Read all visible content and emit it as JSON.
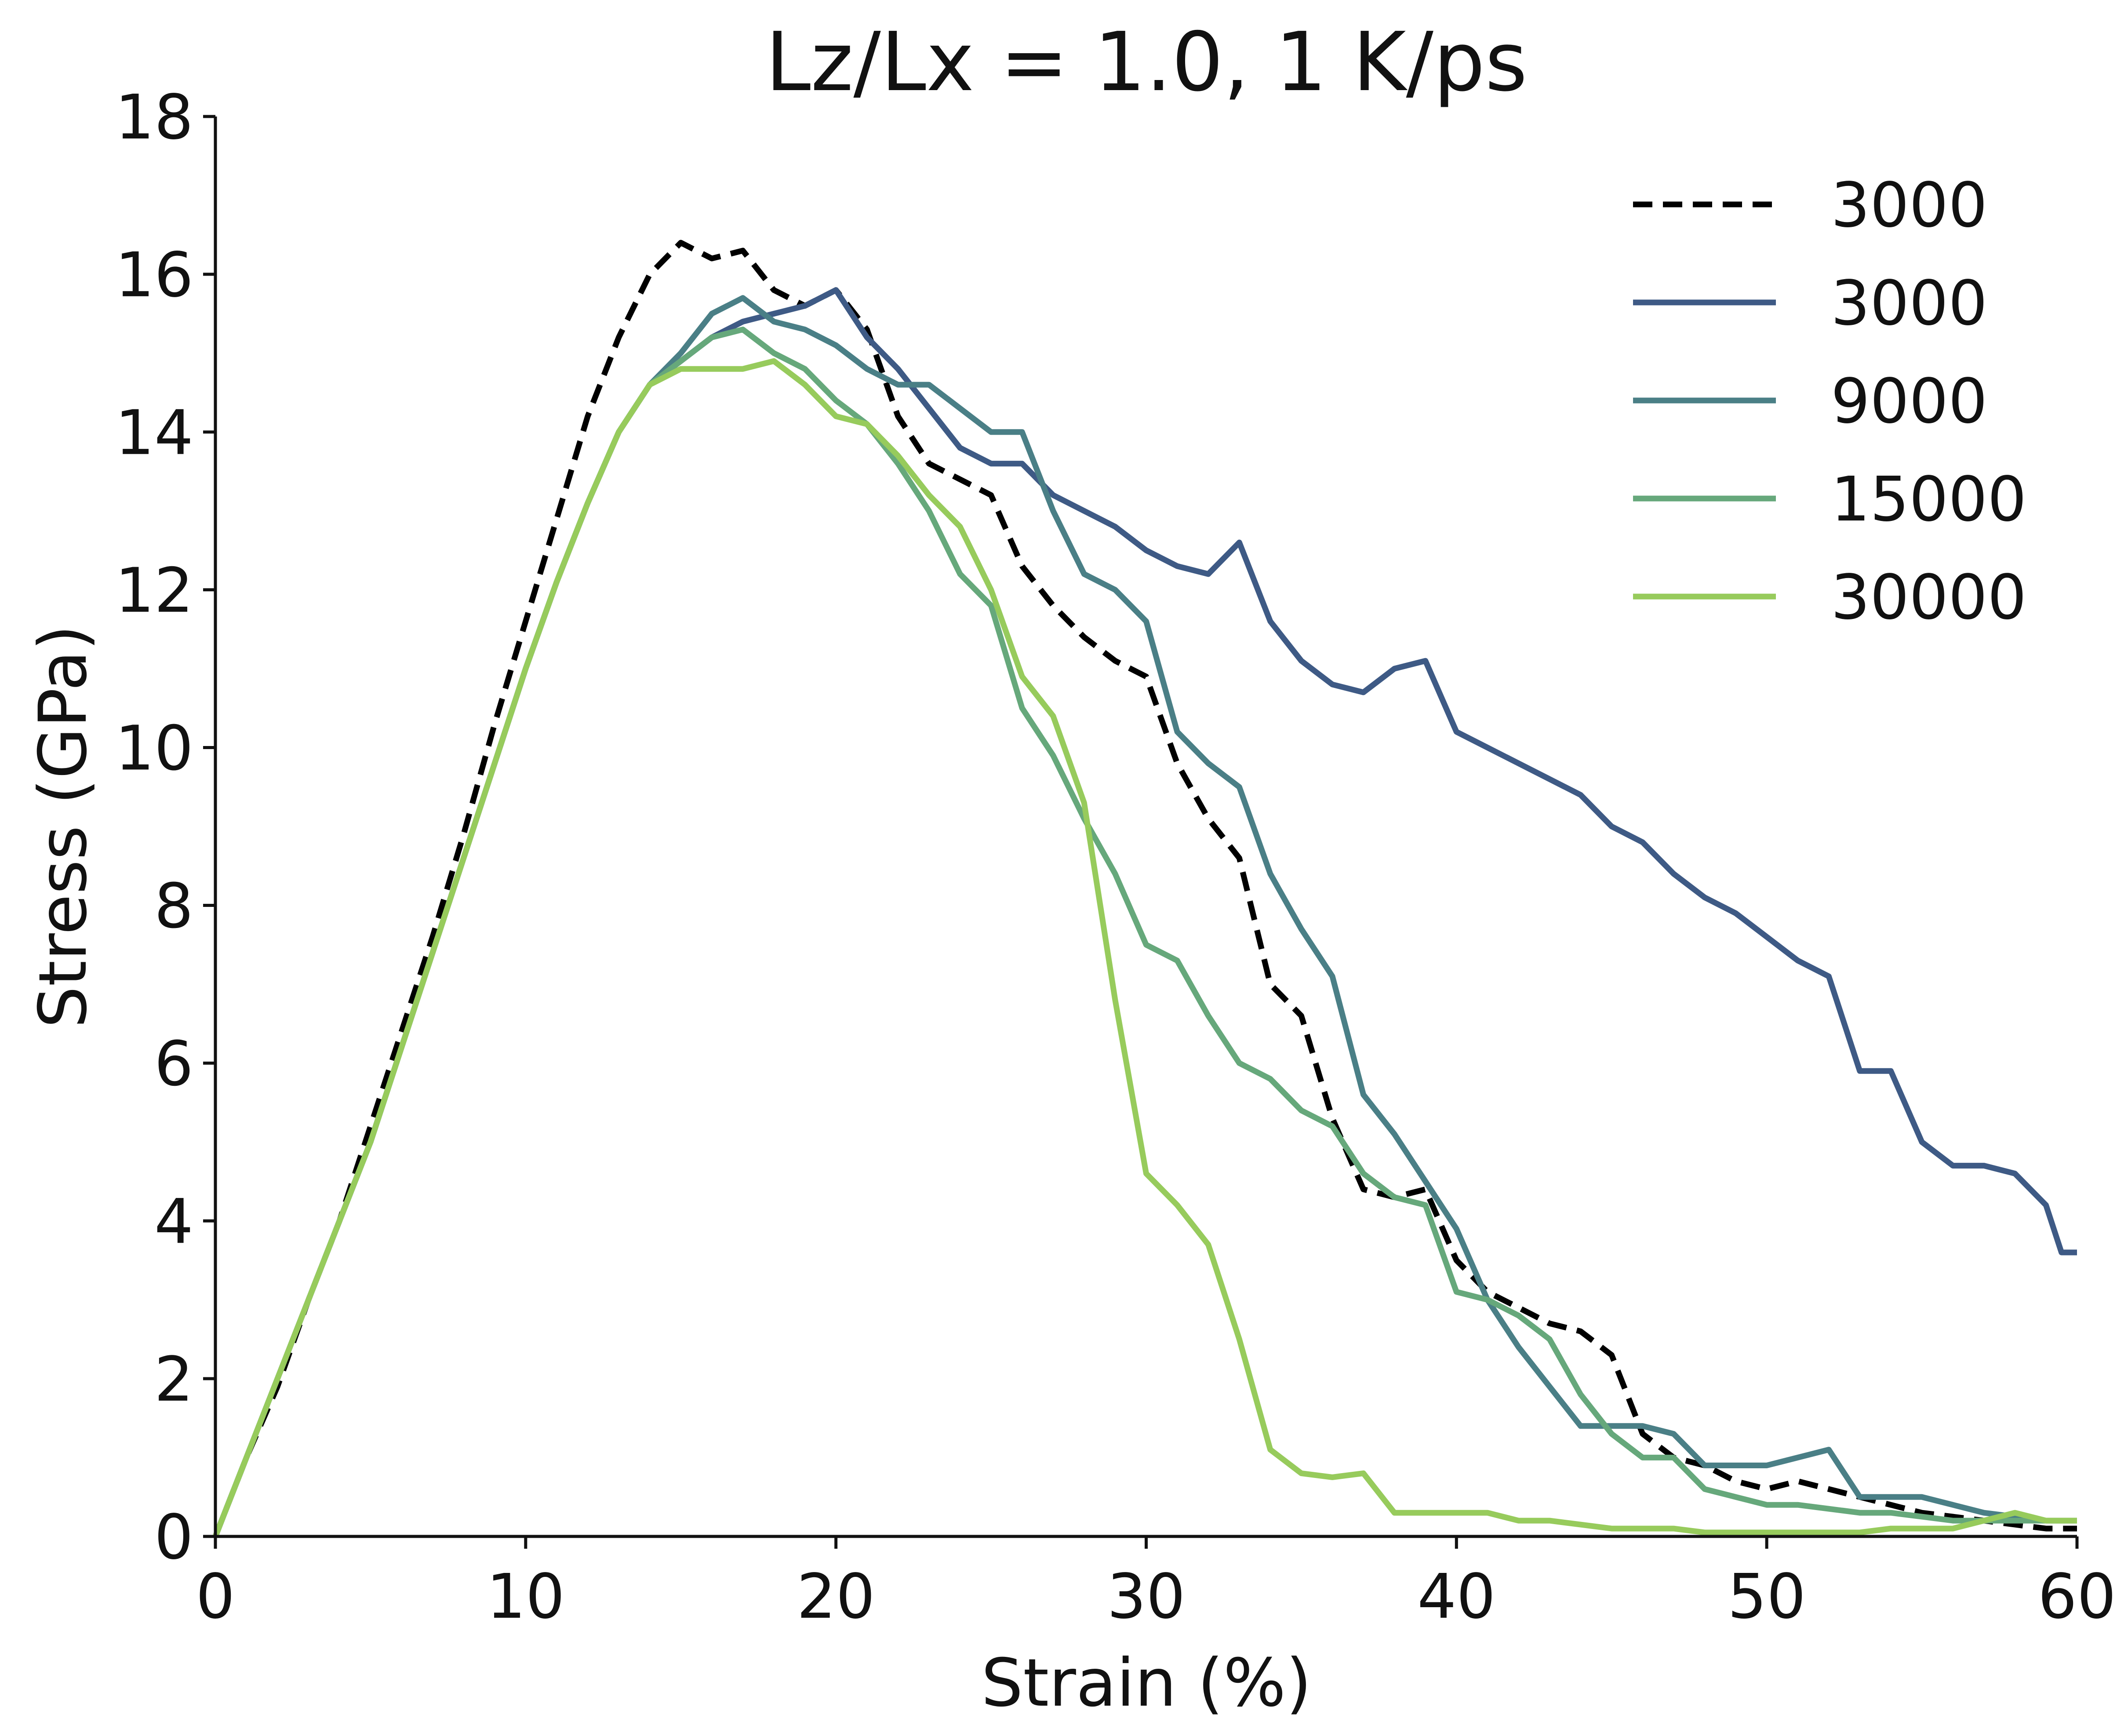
{
  "chart_data": {
    "type": "line",
    "title": "Lz/Lx = 1.0, 1 K/ps",
    "xlabel": "Strain (%)",
    "ylabel": "Stress (GPa)",
    "xlim": [
      0,
      60
    ],
    "ylim": [
      0,
      18
    ],
    "xticks": [
      0,
      10,
      20,
      30,
      40,
      50,
      60
    ],
    "yticks": [
      0,
      2,
      4,
      6,
      8,
      10,
      12,
      14,
      16,
      18
    ],
    "grid": false,
    "legend_position": "top-right",
    "series": [
      {
        "name": "3000",
        "color": "#000000",
        "dashed": true,
        "points": [
          [
            0,
            0
          ],
          [
            1,
            1.0
          ],
          [
            2,
            1.9
          ],
          [
            3,
            3.0
          ],
          [
            4,
            4.0
          ],
          [
            5,
            5.2
          ],
          [
            6,
            6.4
          ],
          [
            7,
            7.6
          ],
          [
            8,
            8.9
          ],
          [
            9,
            10.3
          ],
          [
            10,
            11.6
          ],
          [
            11,
            12.9
          ],
          [
            12,
            14.2
          ],
          [
            13,
            15.2
          ],
          [
            14,
            16.0
          ],
          [
            15,
            16.4
          ],
          [
            16,
            16.2
          ],
          [
            17,
            16.3
          ],
          [
            18,
            15.8
          ],
          [
            19,
            15.6
          ],
          [
            20,
            15.8
          ],
          [
            21,
            15.3
          ],
          [
            22,
            14.2
          ],
          [
            23,
            13.6
          ],
          [
            24,
            13.4
          ],
          [
            25,
            13.2
          ],
          [
            26,
            12.3
          ],
          [
            27,
            11.8
          ],
          [
            28,
            11.4
          ],
          [
            29,
            11.1
          ],
          [
            30,
            10.9
          ],
          [
            31,
            9.8
          ],
          [
            32,
            9.1
          ],
          [
            33,
            8.6
          ],
          [
            34,
            7.0
          ],
          [
            35,
            6.6
          ],
          [
            36,
            5.3
          ],
          [
            37,
            4.4
          ],
          [
            38,
            4.3
          ],
          [
            39,
            4.4
          ],
          [
            40,
            3.5
          ],
          [
            41,
            3.1
          ],
          [
            42,
            2.9
          ],
          [
            43,
            2.7
          ],
          [
            44,
            2.6
          ],
          [
            45,
            2.3
          ],
          [
            46,
            1.3
          ],
          [
            47,
            1.0
          ],
          [
            48,
            0.9
          ],
          [
            49,
            0.7
          ],
          [
            50,
            0.6
          ],
          [
            51,
            0.7
          ],
          [
            52,
            0.6
          ],
          [
            53,
            0.5
          ],
          [
            54,
            0.4
          ],
          [
            55,
            0.3
          ],
          [
            56,
            0.25
          ],
          [
            57,
            0.2
          ],
          [
            58,
            0.15
          ],
          [
            59,
            0.1
          ],
          [
            60,
            0.1
          ]
        ]
      },
      {
        "name": "3000",
        "color": "#3e5a85",
        "dashed": false,
        "points": [
          [
            0,
            0
          ],
          [
            1,
            1.0
          ],
          [
            2,
            2.0
          ],
          [
            3,
            3.0
          ],
          [
            4,
            4.0
          ],
          [
            5,
            5.0
          ],
          [
            6,
            6.2
          ],
          [
            7,
            7.4
          ],
          [
            8,
            8.6
          ],
          [
            9,
            9.8
          ],
          [
            10,
            11.0
          ],
          [
            11,
            12.1
          ],
          [
            12,
            13.1
          ],
          [
            13,
            14.0
          ],
          [
            14,
            14.6
          ],
          [
            15,
            14.9
          ],
          [
            16,
            15.2
          ],
          [
            17,
            15.4
          ],
          [
            18,
            15.5
          ],
          [
            19,
            15.6
          ],
          [
            20,
            15.8
          ],
          [
            21,
            15.2
          ],
          [
            22,
            14.8
          ],
          [
            23,
            14.3
          ],
          [
            24,
            13.8
          ],
          [
            25,
            13.6
          ],
          [
            26,
            13.6
          ],
          [
            27,
            13.2
          ],
          [
            28,
            13.0
          ],
          [
            29,
            12.8
          ],
          [
            30,
            12.5
          ],
          [
            31,
            12.3
          ],
          [
            32,
            12.2
          ],
          [
            33,
            12.6
          ],
          [
            34,
            11.6
          ],
          [
            35,
            11.1
          ],
          [
            36,
            10.8
          ],
          [
            37,
            10.7
          ],
          [
            38,
            11.0
          ],
          [
            39,
            11.1
          ],
          [
            40,
            10.2
          ],
          [
            41,
            10.0
          ],
          [
            42,
            9.8
          ],
          [
            43,
            9.6
          ],
          [
            44,
            9.4
          ],
          [
            45,
            9.0
          ],
          [
            46,
            8.8
          ],
          [
            47,
            8.4
          ],
          [
            48,
            8.1
          ],
          [
            49,
            7.9
          ],
          [
            50,
            7.6
          ],
          [
            51,
            7.3
          ],
          [
            52,
            7.1
          ],
          [
            53,
            5.9
          ],
          [
            54,
            5.9
          ],
          [
            55,
            5.0
          ],
          [
            56,
            4.7
          ],
          [
            57,
            4.7
          ],
          [
            58,
            4.6
          ],
          [
            59,
            4.2
          ],
          [
            59.5,
            3.6
          ],
          [
            60,
            3.6
          ]
        ]
      },
      {
        "name": "9000",
        "color": "#4a7f86",
        "dashed": false,
        "points": [
          [
            0,
            0
          ],
          [
            1,
            1.0
          ],
          [
            2,
            2.0
          ],
          [
            3,
            3.0
          ],
          [
            4,
            4.0
          ],
          [
            5,
            5.0
          ],
          [
            6,
            6.2
          ],
          [
            7,
            7.4
          ],
          [
            8,
            8.6
          ],
          [
            9,
            9.8
          ],
          [
            10,
            11.0
          ],
          [
            11,
            12.1
          ],
          [
            12,
            13.1
          ],
          [
            13,
            14.0
          ],
          [
            14,
            14.6
          ],
          [
            15,
            15.0
          ],
          [
            16,
            15.5
          ],
          [
            17,
            15.7
          ],
          [
            18,
            15.4
          ],
          [
            19,
            15.3
          ],
          [
            20,
            15.1
          ],
          [
            21,
            14.8
          ],
          [
            22,
            14.6
          ],
          [
            23,
            14.6
          ],
          [
            24,
            14.3
          ],
          [
            25,
            14.0
          ],
          [
            26,
            14.0
          ],
          [
            27,
            13.0
          ],
          [
            28,
            12.2
          ],
          [
            29,
            12.0
          ],
          [
            30,
            11.6
          ],
          [
            31,
            10.2
          ],
          [
            32,
            9.8
          ],
          [
            33,
            9.5
          ],
          [
            34,
            8.4
          ],
          [
            35,
            7.7
          ],
          [
            36,
            7.1
          ],
          [
            37,
            5.6
          ],
          [
            38,
            5.1
          ],
          [
            39,
            4.5
          ],
          [
            40,
            3.9
          ],
          [
            41,
            3.0
          ],
          [
            42,
            2.4
          ],
          [
            43,
            1.9
          ],
          [
            44,
            1.4
          ],
          [
            45,
            1.4
          ],
          [
            46,
            1.4
          ],
          [
            47,
            1.3
          ],
          [
            48,
            0.9
          ],
          [
            49,
            0.9
          ],
          [
            50,
            0.9
          ],
          [
            51,
            1.0
          ],
          [
            52,
            1.1
          ],
          [
            53,
            0.5
          ],
          [
            54,
            0.5
          ],
          [
            55,
            0.5
          ],
          [
            56,
            0.4
          ],
          [
            57,
            0.3
          ],
          [
            58,
            0.25
          ],
          [
            59,
            0.2
          ],
          [
            60,
            0.2
          ]
        ]
      },
      {
        "name": "15000",
        "color": "#66a87b",
        "dashed": false,
        "points": [
          [
            0,
            0
          ],
          [
            1,
            1.0
          ],
          [
            2,
            2.0
          ],
          [
            3,
            3.0
          ],
          [
            4,
            4.0
          ],
          [
            5,
            5.0
          ],
          [
            6,
            6.2
          ],
          [
            7,
            7.4
          ],
          [
            8,
            8.6
          ],
          [
            9,
            9.8
          ],
          [
            10,
            11.0
          ],
          [
            11,
            12.1
          ],
          [
            12,
            13.1
          ],
          [
            13,
            14.0
          ],
          [
            14,
            14.6
          ],
          [
            15,
            14.9
          ],
          [
            16,
            15.2
          ],
          [
            17,
            15.3
          ],
          [
            18,
            15.0
          ],
          [
            19,
            14.8
          ],
          [
            20,
            14.4
          ],
          [
            21,
            14.1
          ],
          [
            22,
            13.6
          ],
          [
            23,
            13.0
          ],
          [
            24,
            12.2
          ],
          [
            25,
            11.8
          ],
          [
            26,
            10.5
          ],
          [
            27,
            9.9
          ],
          [
            28,
            9.1
          ],
          [
            29,
            8.4
          ],
          [
            30,
            7.5
          ],
          [
            31,
            7.3
          ],
          [
            32,
            6.6
          ],
          [
            33,
            6.0
          ],
          [
            34,
            5.8
          ],
          [
            35,
            5.4
          ],
          [
            36,
            5.2
          ],
          [
            37,
            4.6
          ],
          [
            38,
            4.3
          ],
          [
            39,
            4.2
          ],
          [
            40,
            3.1
          ],
          [
            41,
            3.0
          ],
          [
            42,
            2.8
          ],
          [
            43,
            2.5
          ],
          [
            44,
            1.8
          ],
          [
            45,
            1.3
          ],
          [
            46,
            1.0
          ],
          [
            47,
            1.0
          ],
          [
            48,
            0.6
          ],
          [
            49,
            0.5
          ],
          [
            50,
            0.4
          ],
          [
            51,
            0.4
          ],
          [
            52,
            0.35
          ],
          [
            53,
            0.3
          ],
          [
            54,
            0.3
          ],
          [
            55,
            0.25
          ],
          [
            56,
            0.2
          ],
          [
            57,
            0.2
          ],
          [
            58,
            0.2
          ],
          [
            59,
            0.2
          ],
          [
            60,
            0.2
          ]
        ]
      },
      {
        "name": "30000",
        "color": "#97cb5c",
        "dashed": false,
        "points": [
          [
            0,
            0
          ],
          [
            1,
            1.0
          ],
          [
            2,
            2.0
          ],
          [
            3,
            3.0
          ],
          [
            4,
            4.0
          ],
          [
            5,
            5.0
          ],
          [
            6,
            6.2
          ],
          [
            7,
            7.4
          ],
          [
            8,
            8.6
          ],
          [
            9,
            9.8
          ],
          [
            10,
            11.0
          ],
          [
            11,
            12.1
          ],
          [
            12,
            13.1
          ],
          [
            13,
            14.0
          ],
          [
            14,
            14.6
          ],
          [
            15,
            14.8
          ],
          [
            16,
            14.8
          ],
          [
            17,
            14.8
          ],
          [
            18,
            14.9
          ],
          [
            19,
            14.6
          ],
          [
            20,
            14.2
          ],
          [
            21,
            14.1
          ],
          [
            22,
            13.7
          ],
          [
            23,
            13.2
          ],
          [
            24,
            12.8
          ],
          [
            25,
            12.0
          ],
          [
            26,
            10.9
          ],
          [
            27,
            10.4
          ],
          [
            28,
            9.3
          ],
          [
            29,
            6.8
          ],
          [
            30,
            4.6
          ],
          [
            31,
            4.2
          ],
          [
            32,
            3.7
          ],
          [
            33,
            2.5
          ],
          [
            34,
            1.1
          ],
          [
            35,
            0.8
          ],
          [
            36,
            0.75
          ],
          [
            37,
            0.8
          ],
          [
            38,
            0.3
          ],
          [
            39,
            0.3
          ],
          [
            40,
            0.3
          ],
          [
            41,
            0.3
          ],
          [
            42,
            0.2
          ],
          [
            43,
            0.2
          ],
          [
            44,
            0.15
          ],
          [
            45,
            0.1
          ],
          [
            46,
            0.1
          ],
          [
            47,
            0.1
          ],
          [
            48,
            0.05
          ],
          [
            49,
            0.05
          ],
          [
            50,
            0.05
          ],
          [
            51,
            0.05
          ],
          [
            52,
            0.05
          ],
          [
            53,
            0.05
          ],
          [
            54,
            0.1
          ],
          [
            55,
            0.1
          ],
          [
            56,
            0.1
          ],
          [
            57,
            0.2
          ],
          [
            58,
            0.3
          ],
          [
            59,
            0.2
          ],
          [
            60,
            0.2
          ]
        ]
      }
    ]
  }
}
